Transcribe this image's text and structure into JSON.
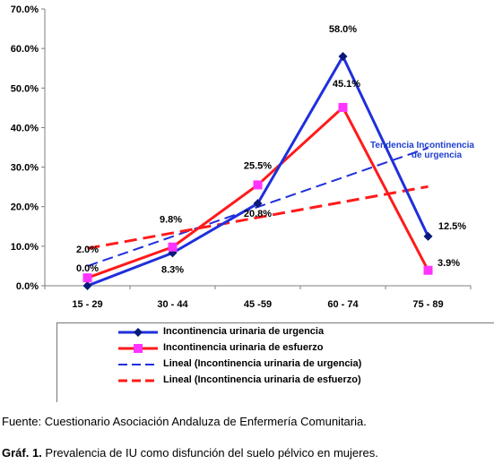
{
  "chart_data": {
    "type": "line",
    "categories": [
      "15 - 29",
      "30 - 44",
      "45 -59",
      "60 - 74",
      "75 - 89"
    ],
    "ylim": [
      0,
      70
    ],
    "yticks": [
      "0.0%",
      "10.0%",
      "20.0%",
      "30.0%",
      "40.0%",
      "50.0%",
      "60.0%",
      "70.0%"
    ],
    "ytick_values": [
      0,
      10,
      20,
      30,
      40,
      50,
      60,
      70
    ],
    "grid": false,
    "legend_position": "bottom",
    "series": [
      {
        "name": "Incontinencia urinaria de urgencia",
        "values": [
          0.0,
          8.3,
          20.8,
          58.0,
          12.5
        ],
        "labels": [
          "0.0%",
          "8.3%",
          "20.8%",
          "58.0%",
          "12.5%"
        ],
        "color": "#1f2fdc",
        "marker": "diamond",
        "style": "solid"
      },
      {
        "name": "Incontinencia urinaria de esfuerzo",
        "values": [
          2.0,
          9.8,
          25.5,
          45.1,
          3.9
        ],
        "labels": [
          "2.0%",
          "9.8%",
          "25.5%",
          "45.1%",
          "3.9%"
        ],
        "color": "#ff1a1a",
        "marker": "square",
        "style": "solid"
      },
      {
        "name": "Lineal (Incontinencia urinaria de urgencia)",
        "trend_of": 0,
        "color": "#1f2fdc",
        "style": "dashed"
      },
      {
        "name": "Lineal (Incontinencia urinaria de esfuerzo)",
        "trend_of": 1,
        "color": "#ff1a1a",
        "style": "dashed"
      }
    ],
    "annotations": [
      "Tendencia Incontinencia",
      "de urgencia"
    ]
  },
  "footer": {
    "source": "Fuente: Cuestionario Asociación Andaluza de Enfermería Comunitaria.",
    "caption_prefix": "Gráf. 1.",
    "caption_text": " Prevalencia de IU como disfunción del suelo pélvico en mujeres."
  }
}
